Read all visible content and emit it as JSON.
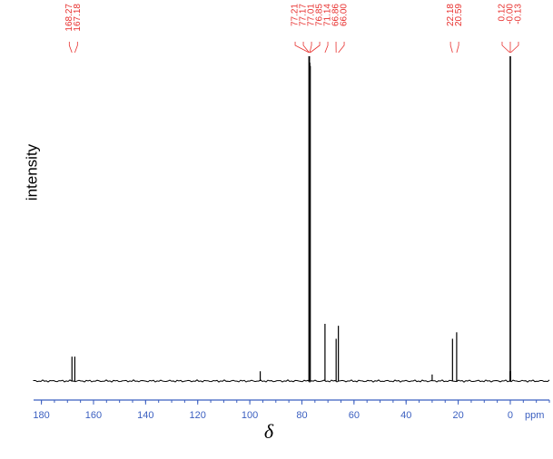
{
  "chart_data": {
    "type": "spectrum",
    "x_label": "δ",
    "x_unit": "ppm",
    "y_label": "intensity",
    "x": [
      168.27,
      167.18,
      96.0,
      77.21,
      77.17,
      77.01,
      76.85,
      71.14,
      66.86,
      66.0,
      30.0,
      22.18,
      20.59,
      0.12,
      -0.0,
      -0.13
    ],
    "values": [
      7.5,
      7.5,
      3,
      100,
      100,
      98,
      97,
      17.6,
      13,
      17,
      2,
      13,
      15,
      3,
      100,
      3
    ],
    "value_labels": [
      "168.27",
      "167.18",
      null,
      "77.21",
      "77.17",
      "77.01",
      "76.85",
      "71.14",
      "66.86",
      "66.00",
      null,
      "22.18",
      "20.59",
      "0.12",
      "-0.00",
      "-0.13"
    ],
    "color": "#000000",
    "label_color": "#e8312f",
    "axis_color": "#3b5fc0",
    "xlim": [
      183,
      -15
    ],
    "xticks": [
      180,
      160,
      140,
      120,
      100,
      80,
      60,
      40,
      20,
      0
    ],
    "ylim": [
      0,
      100
    ]
  }
}
